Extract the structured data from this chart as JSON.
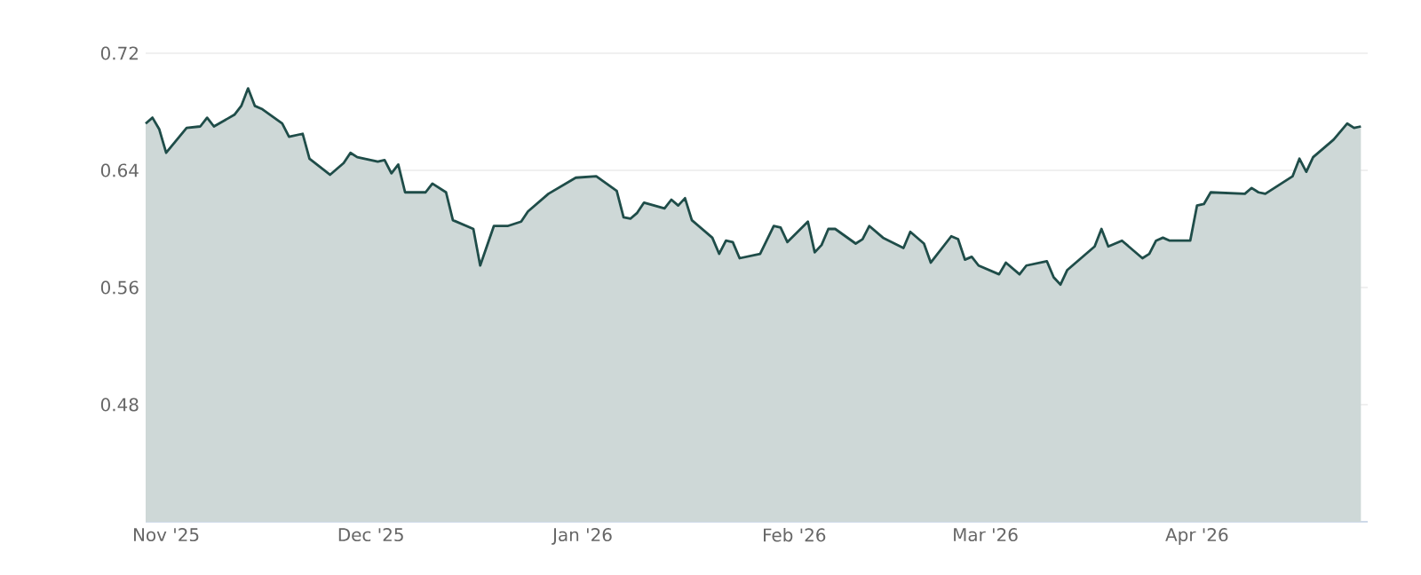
{
  "chart_data": {
    "type": "area",
    "color": "#1f4d49",
    "grid": "y",
    "x": [
      "2025-10-29",
      "2025-10-30",
      "2025-10-31",
      "2025-11-01",
      "2025-11-04",
      "2025-11-06",
      "2025-11-07",
      "2025-11-08",
      "2025-11-11",
      "2025-11-12",
      "2025-11-13",
      "2025-11-14",
      "2025-11-15",
      "2025-11-18",
      "2025-11-19",
      "2025-11-21",
      "2025-11-22",
      "2025-11-25",
      "2025-11-27",
      "2025-11-28",
      "2025-11-29",
      "2025-12-02",
      "2025-12-03",
      "2025-12-04",
      "2025-12-05",
      "2025-12-06",
      "2025-12-09",
      "2025-12-10",
      "2025-12-12",
      "2025-12-13",
      "2025-12-16",
      "2025-12-17",
      "2025-12-19",
      "2025-12-21",
      "2025-12-23",
      "2025-12-24",
      "2025-12-27",
      "2025-12-31",
      "2026-01-03",
      "2026-01-06",
      "2026-01-07",
      "2026-01-08",
      "2026-01-09",
      "2026-01-10",
      "2026-01-13",
      "2026-01-14",
      "2026-01-15",
      "2026-01-16",
      "2026-01-17",
      "2026-01-20",
      "2026-01-21",
      "2026-01-22",
      "2026-01-23",
      "2026-01-24",
      "2026-01-27",
      "2026-01-29",
      "2026-01-30",
      "2026-01-31",
      "2026-02-03",
      "2026-02-04",
      "2026-02-05",
      "2026-02-06",
      "2026-02-07",
      "2026-02-10",
      "2026-02-11",
      "2026-02-12",
      "2026-02-14",
      "2026-02-17",
      "2026-02-18",
      "2026-02-20",
      "2026-02-21",
      "2026-02-24",
      "2026-02-25",
      "2026-02-26",
      "2026-02-27",
      "2026-02-28",
      "2026-03-03",
      "2026-03-04",
      "2026-03-06",
      "2026-03-07",
      "2026-03-10",
      "2026-03-11",
      "2026-03-12",
      "2026-03-13",
      "2026-03-17",
      "2026-03-18",
      "2026-03-19",
      "2026-03-21",
      "2026-03-24",
      "2026-03-25",
      "2026-03-26",
      "2026-03-27",
      "2026-03-28",
      "2026-03-31",
      "2026-04-01",
      "2026-04-02",
      "2026-04-03",
      "2026-04-08",
      "2026-04-09",
      "2026-04-10",
      "2026-04-11",
      "2026-04-15",
      "2026-04-16",
      "2026-04-17",
      "2026-04-18",
      "2026-04-21",
      "2026-04-23",
      "2026-04-24",
      "2026-04-25"
    ],
    "values": [
      0.672,
      0.676,
      0.668,
      0.652,
      0.669,
      0.67,
      0.676,
      0.67,
      0.678,
      0.684,
      0.696,
      0.684,
      0.682,
      0.672,
      0.663,
      0.665,
      0.648,
      0.637,
      0.645,
      0.652,
      0.649,
      0.646,
      0.647,
      0.638,
      0.644,
      0.625,
      0.625,
      0.631,
      0.625,
      0.606,
      0.6,
      0.575,
      0.602,
      0.602,
      0.605,
      0.612,
      0.624,
      0.635,
      0.636,
      0.626,
      0.608,
      0.607,
      0.611,
      0.618,
      0.614,
      0.62,
      0.616,
      0.621,
      0.606,
      0.594,
      0.583,
      0.592,
      0.591,
      0.58,
      0.583,
      0.602,
      0.601,
      0.591,
      0.605,
      0.584,
      0.589,
      0.6,
      0.6,
      0.59,
      0.593,
      0.602,
      0.594,
      0.587,
      0.598,
      0.59,
      0.577,
      0.595,
      0.593,
      0.579,
      0.581,
      0.575,
      0.569,
      0.577,
      0.569,
      0.575,
      0.578,
      0.567,
      0.562,
      0.572,
      0.588,
      0.6,
      0.588,
      0.592,
      0.58,
      0.583,
      0.592,
      0.594,
      0.592,
      0.592,
      0.616,
      0.617,
      0.625,
      0.624,
      0.628,
      0.625,
      0.624,
      0.636,
      0.648,
      0.639,
      0.649,
      0.661,
      0.672,
      0.669,
      0.67
    ],
    "xlim": [
      "2025-10-29",
      "2026-04-26"
    ],
    "xticks": [
      {
        "value": "2025-11-01",
        "label": "Nov '25"
      },
      {
        "value": "2025-12-01",
        "label": "Dec '25"
      },
      {
        "value": "2026-01-01",
        "label": "Jan '26"
      },
      {
        "value": "2026-02-01",
        "label": "Feb '26"
      },
      {
        "value": "2026-03-01",
        "label": "Mar '26"
      },
      {
        "value": "2026-04-01",
        "label": "Apr '26"
      }
    ],
    "ylim": [
      0.4,
      0.72
    ],
    "yticks": [
      0.48,
      0.56,
      0.64,
      0.72
    ]
  }
}
